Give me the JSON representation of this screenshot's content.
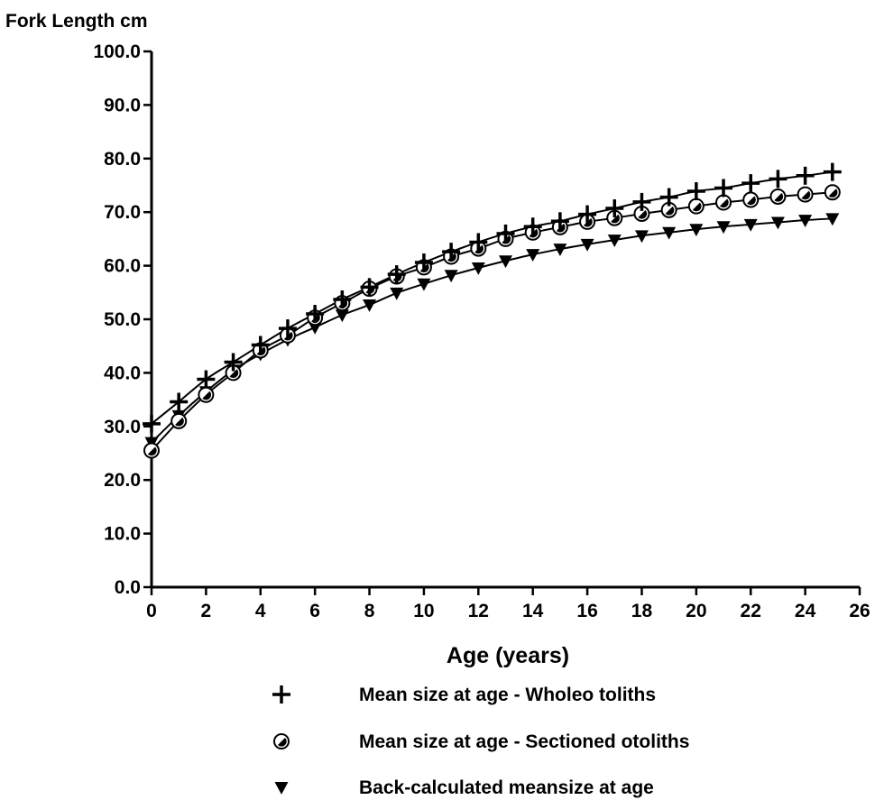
{
  "chart_data": {
    "type": "scatter",
    "ylabel": "Fork Length cm",
    "xlabel": "Age (years)",
    "xlim": [
      0,
      26
    ],
    "ylim": [
      0,
      100
    ],
    "x_ticks": [
      "0",
      "2",
      "4",
      "6",
      "8",
      "10",
      "12",
      "14",
      "16",
      "18",
      "20",
      "22",
      "24",
      "26"
    ],
    "y_ticks": [
      "0.0",
      "10.0",
      "20.0",
      "30.0",
      "40.0",
      "50.0",
      "60.0",
      "70.0",
      "80.0",
      "90.0",
      "100.0"
    ],
    "grid": false,
    "legend_position": "bottom",
    "series": [
      {
        "name": "Mean size at age - Wholeo toliths",
        "marker": "plus",
        "fitted_curve": true,
        "x": [
          0,
          1,
          2,
          3,
          4,
          5,
          6,
          7,
          8,
          9,
          10,
          11,
          12,
          13,
          14,
          15,
          16,
          17,
          18,
          19,
          20,
          21,
          22,
          23,
          24,
          25
        ],
        "y": [
          30.5,
          34.6,
          38.8,
          42.0,
          45.2,
          48.3,
          51.0,
          53.7,
          56.0,
          58.4,
          60.6,
          62.6,
          64.4,
          66.0,
          67.3,
          68.3,
          69.6,
          70.7,
          71.9,
          72.8,
          73.9,
          74.5,
          75.4,
          76.2,
          76.8,
          77.5
        ]
      },
      {
        "name": "Mean size at age - Sectioned otoliths",
        "marker": "circle",
        "fitted_curve": true,
        "x": [
          0,
          1,
          2,
          3,
          4,
          5,
          6,
          7,
          8,
          9,
          10,
          11,
          12,
          13,
          14,
          15,
          16,
          17,
          18,
          19,
          20,
          21,
          22,
          23,
          24,
          25
        ],
        "y": [
          25.5,
          31.0,
          35.9,
          40.0,
          44.2,
          47.0,
          50.3,
          53.0,
          55.7,
          58.0,
          59.7,
          61.7,
          63.2,
          65.0,
          66.2,
          67.2,
          68.2,
          68.9,
          69.7,
          70.4,
          71.1,
          71.8,
          72.3,
          72.9,
          73.3,
          73.7
        ]
      },
      {
        "name": "Back-calculated meansize at age",
        "marker": "triangle-down",
        "fitted_curve": true,
        "x": [
          0,
          1,
          2,
          3,
          4,
          5,
          6,
          7,
          8,
          9,
          10,
          11,
          12,
          13,
          14,
          15,
          16,
          17,
          18,
          19,
          20,
          21,
          22,
          23,
          24,
          25
        ],
        "y": [
          27.0,
          32.0,
          36.5,
          40.5,
          43.5,
          46.2,
          48.5,
          50.8,
          52.7,
          54.9,
          56.6,
          58.2,
          59.6,
          60.9,
          62.1,
          63.1,
          64.0,
          64.8,
          65.6,
          66.2,
          66.8,
          67.3,
          67.7,
          68.1,
          68.5,
          68.8
        ]
      }
    ]
  }
}
